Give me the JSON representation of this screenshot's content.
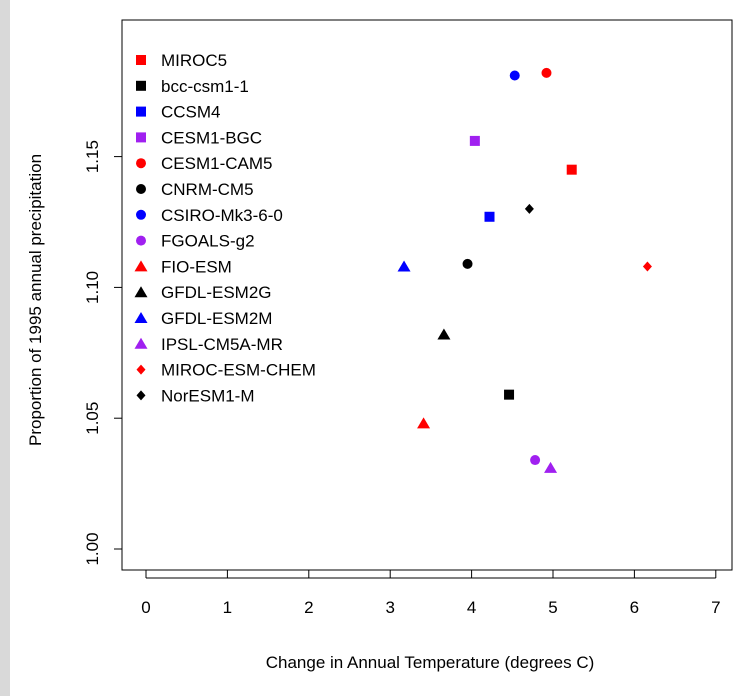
{
  "chart_data": {
    "type": "scatter",
    "title": "",
    "xlabel": "Change in Annual Temperature (degrees C)",
    "ylabel": "Proportion of 1995 annual precipitation",
    "xlim": [
      0,
      7
    ],
    "ylim": [
      1.0,
      1.18
    ],
    "x_ticks": [
      "0",
      "1",
      "2",
      "3",
      "4",
      "5",
      "6",
      "7"
    ],
    "y_ticks": [
      "1.00",
      "1.05",
      "1.10",
      "1.15"
    ],
    "legend_position": "top-left",
    "grid": false,
    "series": [
      {
        "name": "MIROC5",
        "color": "#ff0000",
        "marker": "square",
        "x": 5.23,
        "y": 1.145
      },
      {
        "name": "bcc-csm1-1",
        "color": "#000000",
        "marker": "square",
        "x": 4.46,
        "y": 1.059
      },
      {
        "name": "CCSM4",
        "color": "#0000ff",
        "marker": "square",
        "x": 4.22,
        "y": 1.127
      },
      {
        "name": "CESM1-BGC",
        "color": "#a020f0",
        "marker": "square",
        "x": 4.04,
        "y": 1.156
      },
      {
        "name": "CESM1-CAM5",
        "color": "#ff0000",
        "marker": "circle",
        "x": 4.92,
        "y": 1.182
      },
      {
        "name": "CNRM-CM5",
        "color": "#000000",
        "marker": "circle",
        "x": 3.95,
        "y": 1.109
      },
      {
        "name": "CSIRO-Mk3-6-0",
        "color": "#0000ff",
        "marker": "circle",
        "x": 4.53,
        "y": 1.181
      },
      {
        "name": "FGOALS-g2",
        "color": "#a020f0",
        "marker": "circle",
        "x": 4.78,
        "y": 1.034
      },
      {
        "name": "FIO-ESM",
        "color": "#ff0000",
        "marker": "triangle",
        "x": 3.41,
        "y": 1.048
      },
      {
        "name": "GFDL-ESM2G",
        "color": "#000000",
        "marker": "triangle",
        "x": 3.66,
        "y": 1.082
      },
      {
        "name": "GFDL-ESM2M",
        "color": "#0000ff",
        "marker": "triangle",
        "x": 3.17,
        "y": 1.108
      },
      {
        "name": "IPSL-CM5A-MR",
        "color": "#a020f0",
        "marker": "triangle",
        "x": 4.97,
        "y": 1.031
      },
      {
        "name": "MIROC-ESM-CHEM",
        "color": "#ff0000",
        "marker": "diamond",
        "x": 6.16,
        "y": 1.108
      },
      {
        "name": "NorESM1-M",
        "color": "#000000",
        "marker": "diamond",
        "x": 4.71,
        "y": 1.13
      }
    ]
  }
}
